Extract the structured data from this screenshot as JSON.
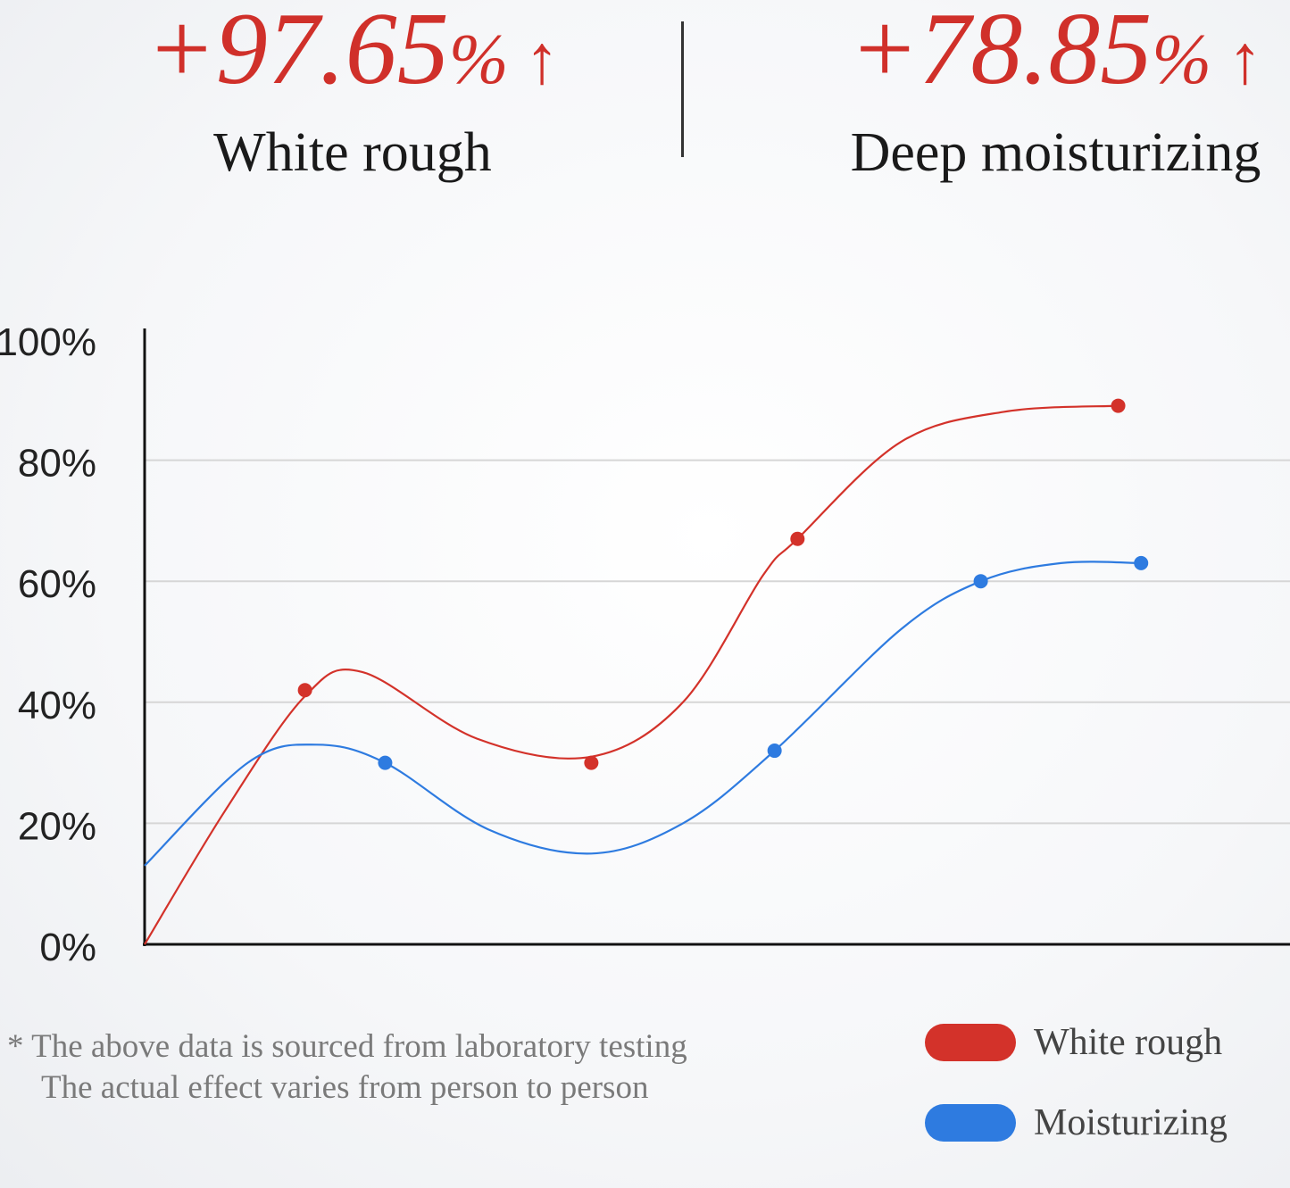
{
  "stats": [
    {
      "value": "+97.65",
      "unit": "%",
      "label": "White rough",
      "arrow": "↑"
    },
    {
      "value": "+78.85",
      "unit": "%",
      "label": "Deep moisturizing",
      "arrow": "↑"
    }
  ],
  "chart_data": {
    "type": "line",
    "title": "",
    "xlabel": "",
    "ylabel": "",
    "ylim": [
      0,
      100
    ],
    "yticks": [
      "0%",
      "20%",
      "40%",
      "60%",
      "80%",
      "100%"
    ],
    "grid": true,
    "legend_position": "bottom-right",
    "series": [
      {
        "name": "White rough",
        "color": "#d3322a",
        "curve": [
          [
            0,
            0
          ],
          [
            7,
            22
          ],
          [
            14,
            41
          ],
          [
            19,
            45
          ],
          [
            29,
            34
          ],
          [
            39,
            31
          ],
          [
            47,
            40
          ],
          [
            54,
            61
          ],
          [
            57,
            67
          ],
          [
            66,
            83
          ],
          [
            75,
            88
          ],
          [
            85,
            89
          ]
        ],
        "markers": [
          [
            14,
            42
          ],
          [
            39,
            30
          ],
          [
            57,
            67
          ],
          [
            85,
            89
          ]
        ]
      },
      {
        "name": "Moisturizing",
        "color": "#2e7be0",
        "curve": [
          [
            0,
            13
          ],
          [
            9,
            30
          ],
          [
            15,
            33
          ],
          [
            21,
            30
          ],
          [
            30,
            19
          ],
          [
            39,
            15
          ],
          [
            47,
            20
          ],
          [
            55,
            32
          ],
          [
            66,
            52
          ],
          [
            73,
            60
          ],
          [
            80,
            63
          ],
          [
            87,
            63
          ]
        ],
        "markers": [
          [
            21,
            30
          ],
          [
            55,
            32
          ],
          [
            73,
            60
          ],
          [
            87,
            63
          ]
        ]
      }
    ]
  },
  "note": {
    "star": "*",
    "line1": "The above data is sourced from laboratory testing",
    "line2": "The actual effect varies from person to person"
  },
  "legend": [
    {
      "label": "White rough",
      "color": "#d3322a"
    },
    {
      "label": "Moisturizing",
      "color": "#2e7be0"
    }
  ]
}
